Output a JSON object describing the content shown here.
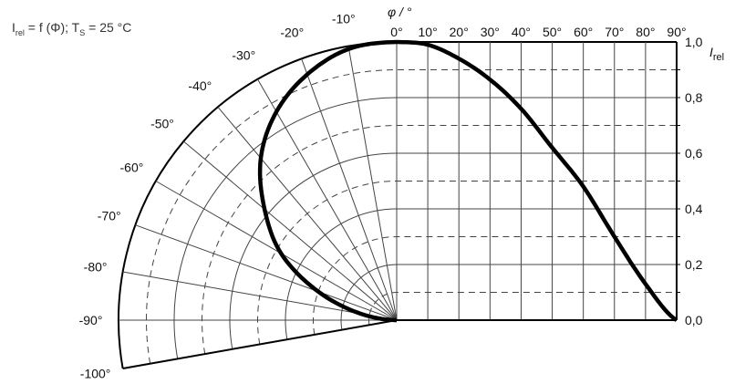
{
  "chart_data": {
    "type": "line",
    "title_parts": {
      "i": "I",
      "i_sub": "rel",
      "mid": " = f (Φ); T",
      "t_sub": "S",
      "end": " = 25 °C"
    },
    "xlabel": "φ / °",
    "ylabel": {
      "main": "I",
      "sub": "rel"
    },
    "x_tick_labels": [
      "0°",
      "10°",
      "20°",
      "30°",
      "40°",
      "50°",
      "60°",
      "70°",
      "80°",
      "90°"
    ],
    "polar_tick_labels": [
      "-10°",
      "-20°",
      "-30°",
      "-40°",
      "-50°",
      "-60°",
      "-70°",
      "-80°",
      "-90°",
      "-100°"
    ],
    "y_tick_labels": [
      "0,0",
      "0,2",
      "0,4",
      "0,6",
      "0,8",
      "1,0"
    ],
    "xlim": [
      0,
      90
    ],
    "ylim": [
      0,
      1.0
    ],
    "polar_range": [
      -100,
      0
    ],
    "grid": true,
    "x": [
      0,
      10,
      20,
      30,
      40,
      50,
      60,
      70,
      80,
      90
    ],
    "values": [
      1.0,
      0.99,
      0.94,
      0.865,
      0.76,
      0.62,
      0.48,
      0.3,
      0.13,
      0.0
    ],
    "colors": {
      "curve": "#000000",
      "grid": "#444444"
    }
  }
}
